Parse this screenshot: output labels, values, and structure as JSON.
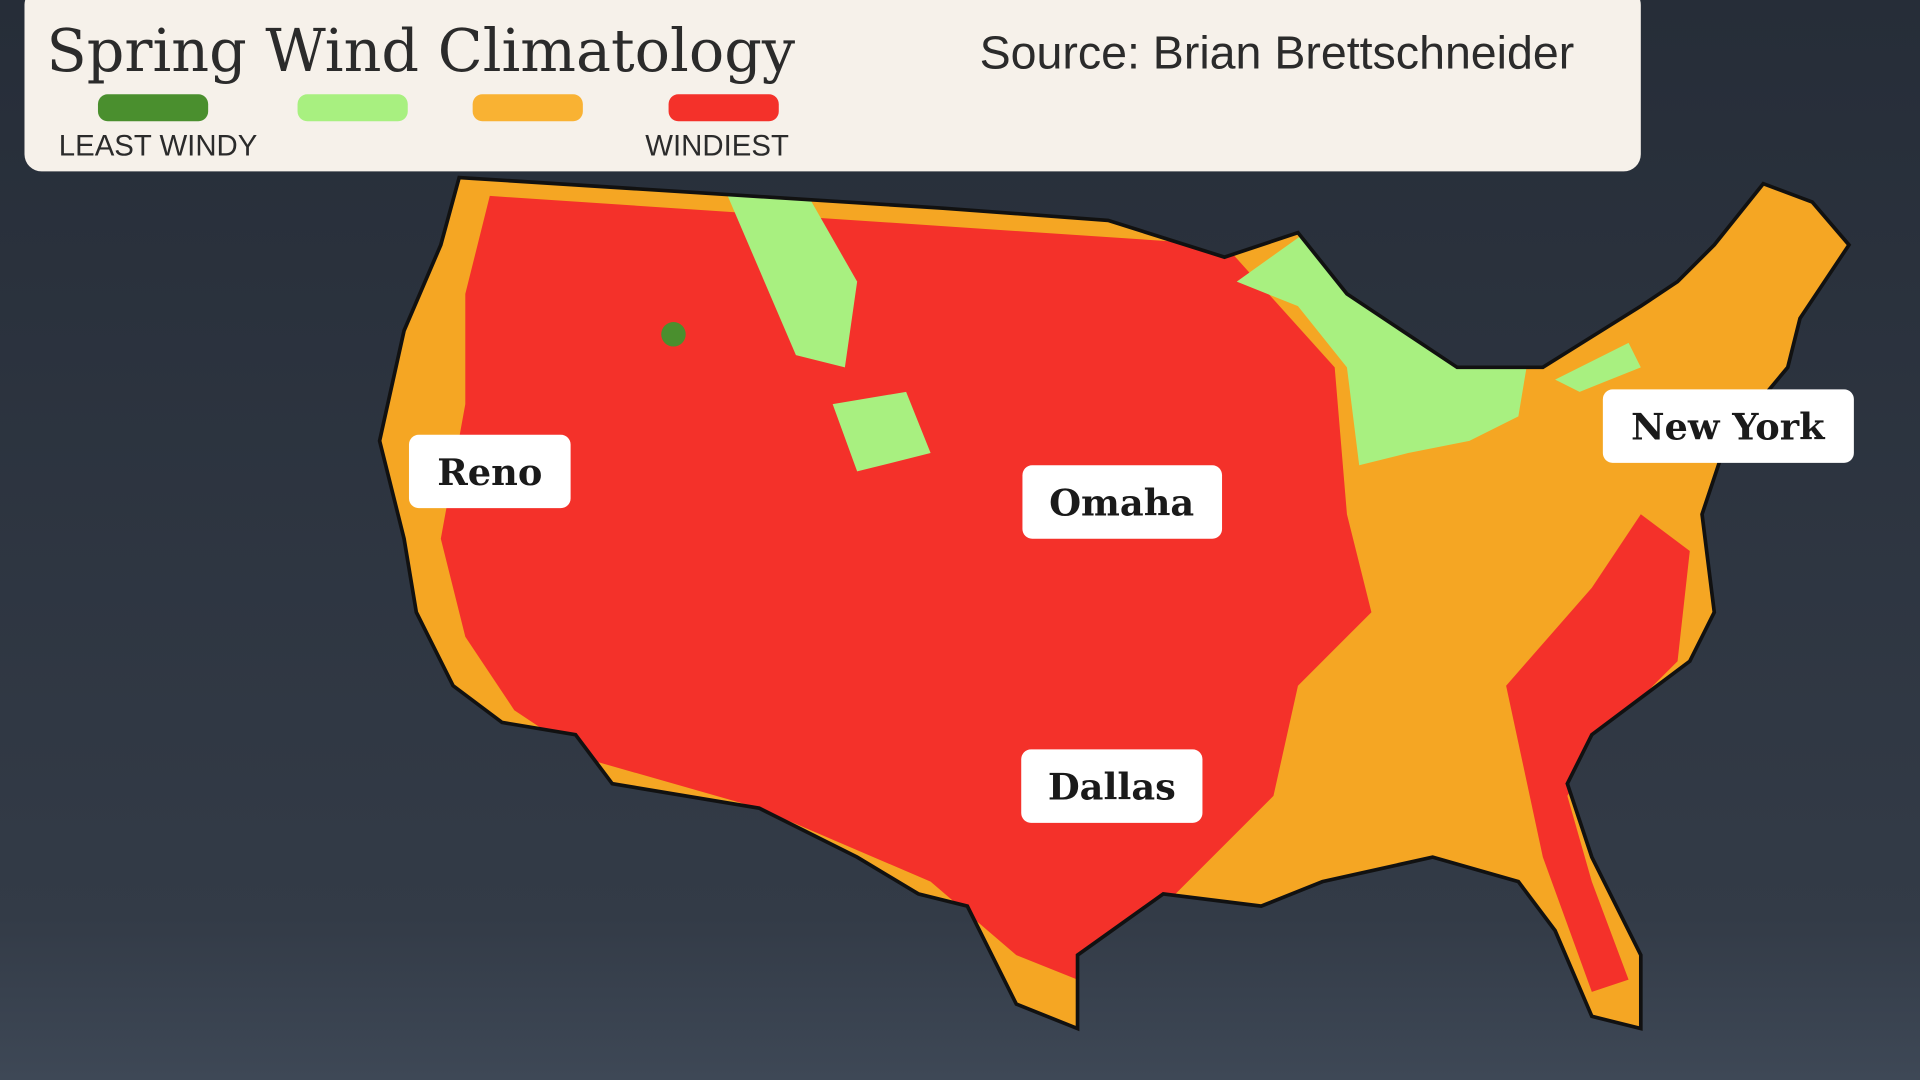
{
  "header": {
    "title": "Spring Wind Climatology",
    "source": "Source: Brian Brettschneider"
  },
  "legend": {
    "low_label": "LEAST WINDY",
    "high_label": "WINDIEST"
  },
  "cities": [
    "Reno",
    "Omaha",
    "Dallas",
    "New York"
  ]
}
